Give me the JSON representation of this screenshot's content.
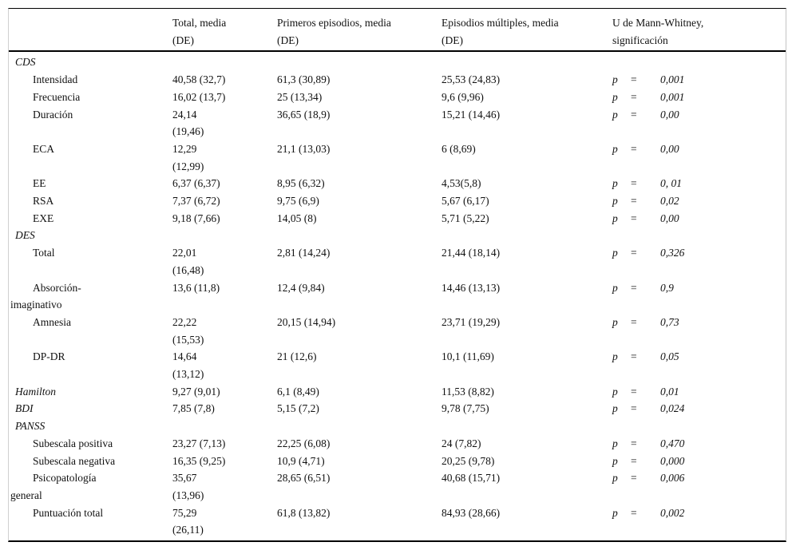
{
  "colors": {
    "ink": "#111111",
    "rule": "#000000"
  },
  "table": {
    "columns": [
      {
        "key": "label",
        "header": ""
      },
      {
        "key": "total",
        "header": "Total, media\n(DE)"
      },
      {
        "key": "primeros",
        "header": "Primeros episodios, media\n(DE)"
      },
      {
        "key": "multiples",
        "header": "Episodios múltiples, media\n(DE)"
      },
      {
        "key": "sig",
        "header": "U de Mann-Whitney,\nsignificación"
      }
    ],
    "p_symbol": "p",
    "equals_symbol": "=",
    "rows": [
      {
        "label": "CDS",
        "style": "section"
      },
      {
        "label": "Intensidad",
        "style": "item",
        "total": "40,58 (32,7)",
        "primeros": "61,3 (30,89)",
        "multiples": "25,53 (24,83)",
        "p": "0,001"
      },
      {
        "label": "Frecuencia",
        "style": "item",
        "total": "16,02 (13,7)",
        "primeros": "25 (13,34)",
        "multiples": "9,6 (9,96)",
        "p": "0,001"
      },
      {
        "label": "Duración",
        "style": "item",
        "total": "24,14\n(19,46)",
        "primeros": "36,65 (18,9)",
        "multiples": "15,21 (14,46)",
        "p": "0,00"
      },
      {
        "label": "ECA",
        "style": "item",
        "total": "12,29\n(12,99)",
        "primeros": "21,1 (13,03)",
        "multiples": "6 (8,69)",
        "p": "0,00"
      },
      {
        "label": "EE",
        "style": "item",
        "total": "6,37 (6,37)",
        "primeros": "8,95 (6,32)",
        "multiples": "4,53(5,8)",
        "p": "0, 01"
      },
      {
        "label": "RSA",
        "style": "item",
        "total": "7,37 (6,72)",
        "primeros": "9,75 (6,9)",
        "multiples": "5,67 (6,17)",
        "p": "0,02"
      },
      {
        "label": "EXE",
        "style": "item",
        "total": "9,18 (7,66)",
        "primeros": "14,05 (8)",
        "multiples": "5,71 (5,22)",
        "p": "0,00"
      },
      {
        "label": "DES",
        "style": "section"
      },
      {
        "label": "Total",
        "style": "item",
        "total": "22,01\n(16,48)",
        "primeros": "2,81 (14,24)",
        "multiples": "21,44 (18,14)",
        "p": "0,326"
      },
      {
        "label": "Absorción-\nimaginativo",
        "style": "item",
        "total": "13,6 (11,8)",
        "primeros": "12,4 (9,84)",
        "multiples": "14,46 (13,13)",
        "p": "0,9"
      },
      {
        "label": "Amnesia",
        "style": "item",
        "total": "22,22\n(15,53)",
        "primeros": "20,15 (14,94)",
        "multiples": "23,71 (19,29)",
        "p": "0,73"
      },
      {
        "label": "DP-DR",
        "style": "item",
        "total": "14,64\n(13,12)",
        "primeros": "21 (12,6)",
        "multiples": "10,1 (11,69)",
        "p": "0,05"
      },
      {
        "label": "Hamilton",
        "style": "section",
        "total": "9,27 (9,01)",
        "primeros": "6,1 (8,49)",
        "multiples": "11,53 (8,82)",
        "p": "0,01"
      },
      {
        "label": "BDI",
        "style": "section",
        "total": "7,85 (7,8)",
        "primeros": "5,15 (7,2)",
        "multiples": "9,78 (7,75)",
        "p": "0,024"
      },
      {
        "label": "PANSS",
        "style": "section"
      },
      {
        "label": "Subescala positiva",
        "style": "item",
        "total": "23,27 (7,13)",
        "primeros": "22,25 (6,08)",
        "multiples": "24 (7,82)",
        "p": "0,470"
      },
      {
        "label": "Subescala negativa",
        "style": "item",
        "total": "16,35 (9,25)",
        "primeros": "10,9 (4,71)",
        "multiples": "20,25 (9,78)",
        "p": "0,000"
      },
      {
        "label": "Psicopatología\ngeneral",
        "style": "item",
        "total": "35,67\n(13,96)",
        "primeros": "28,65 (6,51)",
        "multiples": "40,68 (15,71)",
        "p": "0,006"
      },
      {
        "label": "Puntuación total",
        "style": "item",
        "total": "75,29\n(26,11)",
        "primeros": "61,8 (13,82)",
        "multiples": "84,93 (28,66)",
        "p": "0,002"
      }
    ]
  }
}
